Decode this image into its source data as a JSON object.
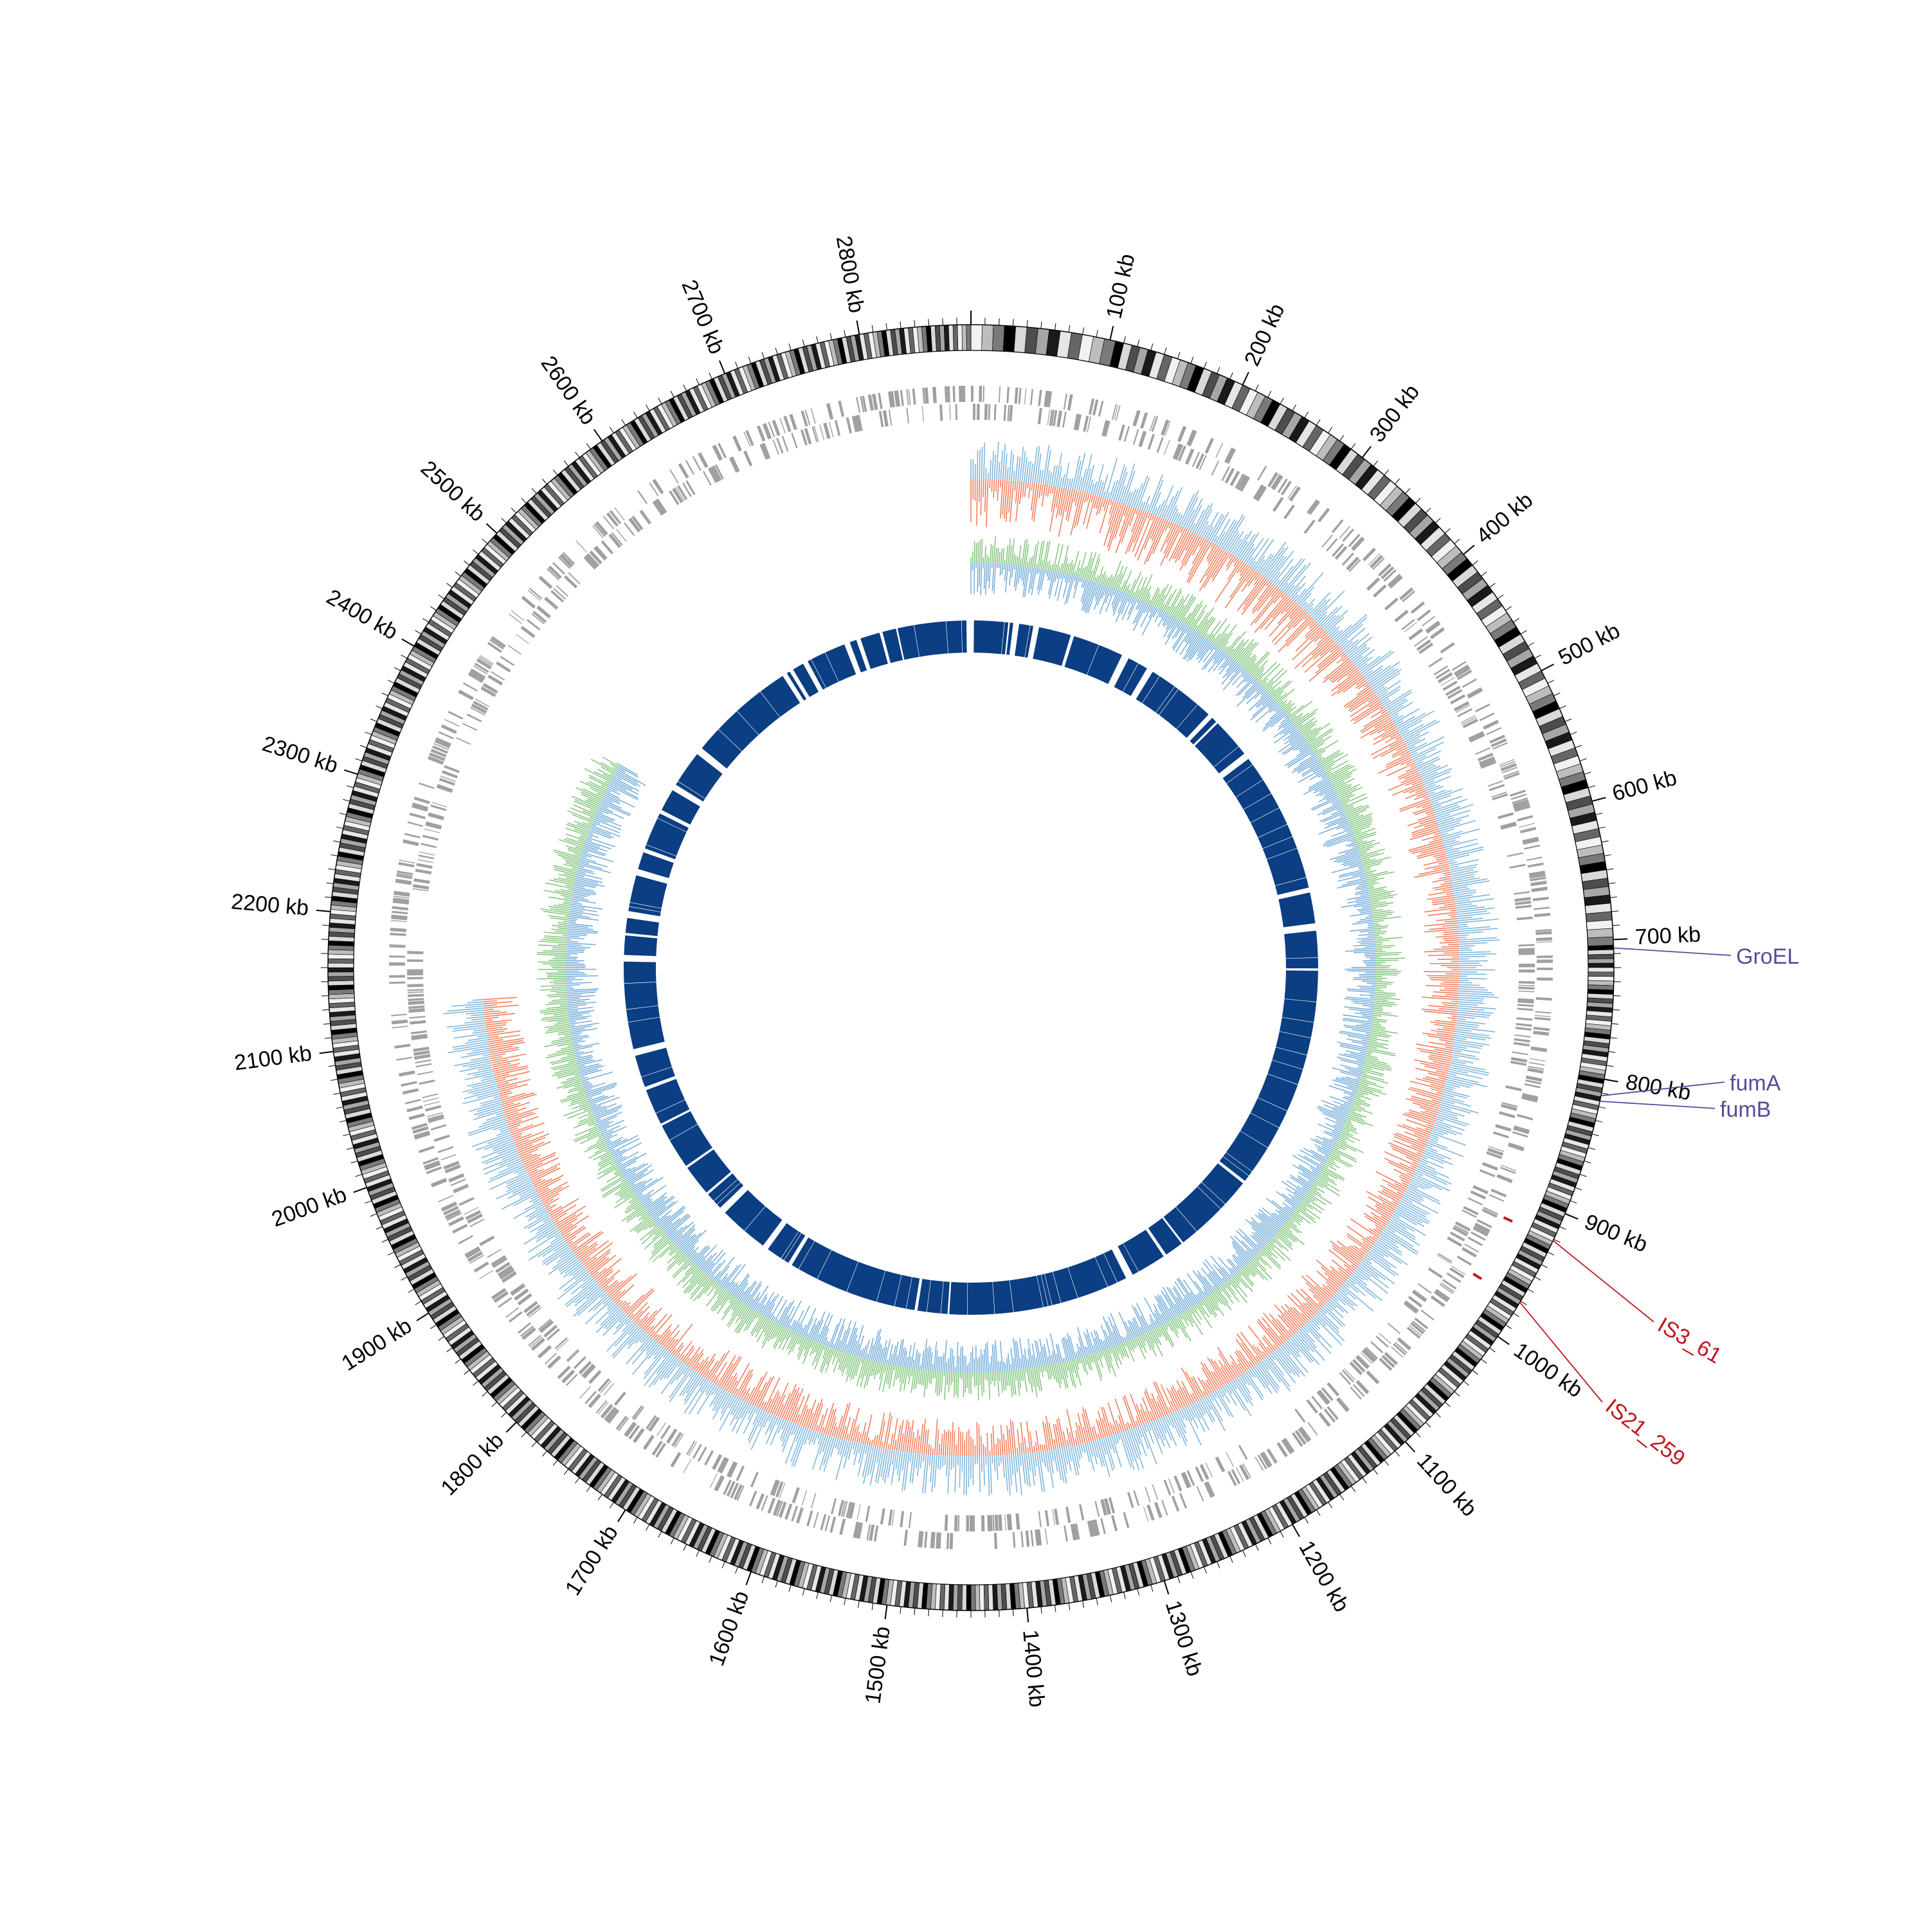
{
  "genome": {
    "total_kb": 2880,
    "tick_labels": [
      "100 kb",
      "200 kb",
      "300 kb",
      "400 kb",
      "500 kb",
      "600 kb",
      "700 kb",
      "800 kb",
      "900 kb",
      "1000 kb",
      "1100 kb",
      "1200 kb",
      "1300 kb",
      "1400 kb",
      "1500 kb",
      "1600 kb",
      "1700 kb",
      "1800 kb",
      "1900 kb",
      "2000 kb",
      "2100 kb",
      "2200 kb",
      "2300 kb",
      "2400 kb",
      "2500 kb",
      "2600 kb",
      "2700 kb",
      "2800 kb"
    ],
    "tick_label_positions_kb": [
      100,
      200,
      300,
      400,
      500,
      600,
      700,
      800,
      900,
      1000,
      1100,
      1200,
      1300,
      1400,
      1500,
      1600,
      1700,
      1800,
      1900,
      2000,
      2100,
      2200,
      2300,
      2400,
      2500,
      2600,
      2700,
      2800
    ],
    "unlabeled_gap_tracks_kb": [
      0,
      540
    ]
  },
  "annotations": [
    {
      "label": "GroEL",
      "position_kb": 706,
      "color": "#5b4a9b"
    },
    {
      "label": "fumA",
      "position_kb": 812,
      "color": "#5b4a9b"
    },
    {
      "label": "fumB",
      "position_kb": 816,
      "color": "#5b4a9b"
    },
    {
      "label": "IS3_61",
      "position_kb": 921,
      "color": "#c0161d"
    },
    {
      "label": "IS21_259",
      "position_kb": 971,
      "color": "#c0161d"
    }
  ],
  "colors": {
    "gene_track": "#a0a0a0",
    "coverage_blue": "#7fb6db",
    "coverage_red": "#f07e5c",
    "gc_green": "#78c072",
    "gc_blue": "#6aa6d6",
    "core_block": "#0b3e82",
    "ideogram_dark": "#000000"
  }
}
